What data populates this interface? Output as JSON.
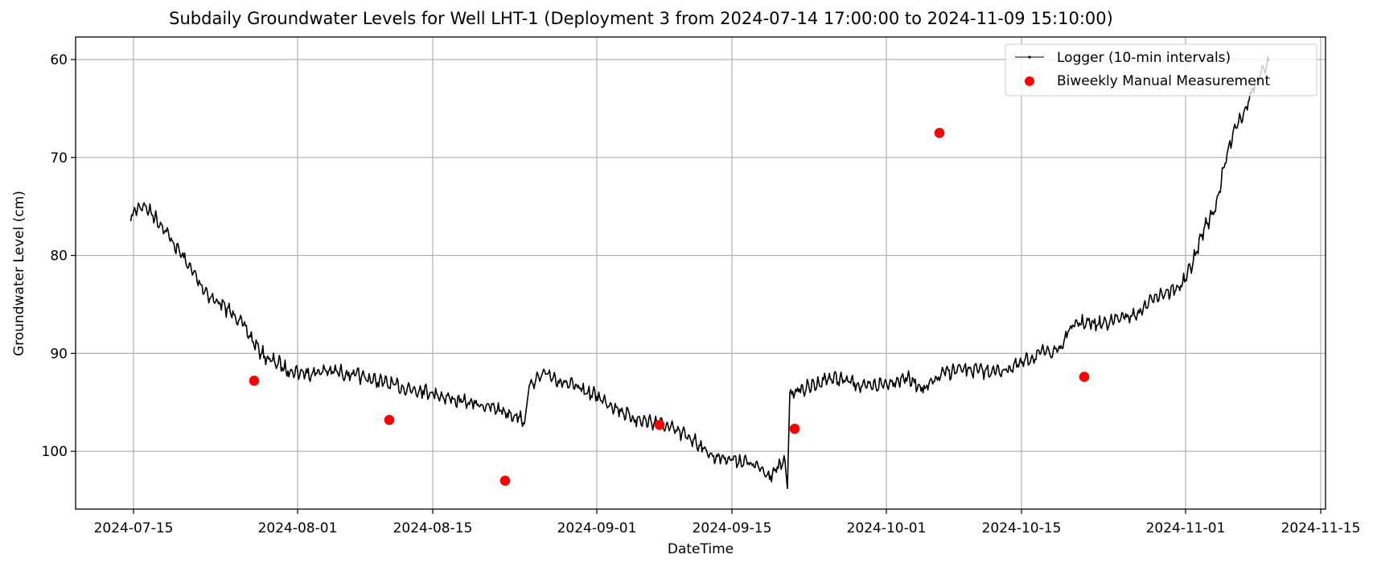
{
  "chart_data": {
    "type": "line",
    "title": "Subdaily Groundwater Levels for Well LHT-1 (Deployment 3 from 2024-07-14 17:00:00 to 2024-11-09 15:10:00)",
    "xlabel": "DateTime",
    "ylabel": "Groundwater Level (cm)",
    "x_axis": {
      "type": "date",
      "range": [
        "2024-07-09",
        "2024-11-15T12:00"
      ],
      "ticks": [
        "2024-07-15",
        "2024-08-01",
        "2024-08-15",
        "2024-09-01",
        "2024-09-15",
        "2024-10-01",
        "2024-10-15",
        "2024-11-01",
        "2024-11-15"
      ]
    },
    "y_axis": {
      "inverted": true,
      "range": [
        105.9,
        57.7
      ],
      "ticks": [
        60,
        70,
        80,
        90,
        100
      ]
    },
    "grid": true,
    "legend": {
      "placement": "top-right",
      "entries": [
        "Logger (10-min intervals)",
        "Biweekly Manual Measurement"
      ]
    },
    "series": [
      {
        "name": "Logger (10-min intervals)",
        "style": "line",
        "color": "#000000",
        "x": [
          "2024-07-14T17:00",
          "2024-07-15",
          "2024-07-16",
          "2024-07-17",
          "2024-07-18",
          "2024-07-19",
          "2024-07-20",
          "2024-07-21",
          "2024-07-22",
          "2024-07-23",
          "2024-07-24",
          "2024-07-25",
          "2024-07-26",
          "2024-07-27",
          "2024-07-28",
          "2024-07-29",
          "2024-07-30",
          "2024-07-31",
          "2024-08-02",
          "2024-08-04",
          "2024-08-06",
          "2024-08-08",
          "2024-08-10",
          "2024-08-12",
          "2024-08-14",
          "2024-08-16",
          "2024-08-18",
          "2024-08-20",
          "2024-08-22",
          "2024-08-24",
          "2024-08-24T12:00",
          "2024-08-25",
          "2024-08-26",
          "2024-08-27",
          "2024-08-28",
          "2024-08-30",
          "2024-09-01",
          "2024-09-03",
          "2024-09-05",
          "2024-09-07",
          "2024-09-09",
          "2024-09-11",
          "2024-09-13",
          "2024-09-15",
          "2024-09-17",
          "2024-09-19",
          "2024-09-20T12:00",
          "2024-09-20T18:00",
          "2024-09-21",
          "2024-09-23",
          "2024-09-25",
          "2024-09-27",
          "2024-09-29",
          "2024-10-01",
          "2024-10-03",
          "2024-10-05",
          "2024-10-07",
          "2024-10-09",
          "2024-10-11",
          "2024-10-13",
          "2024-10-15",
          "2024-10-17",
          "2024-10-19",
          "2024-10-20",
          "2024-10-21",
          "2024-10-23",
          "2024-10-25",
          "2024-10-27",
          "2024-10-29",
          "2024-10-31",
          "2024-11-01",
          "2024-11-02",
          "2024-11-03",
          "2024-11-04",
          "2024-11-05",
          "2024-11-06",
          "2024-11-07",
          "2024-11-08",
          "2024-11-09T15:10"
        ],
        "y": [
          76.5,
          75.5,
          74.8,
          75.9,
          77.0,
          78.5,
          80.0,
          81.5,
          83.0,
          84.3,
          85.0,
          85.7,
          86.5,
          88.2,
          89.7,
          90.6,
          91.0,
          91.8,
          92.0,
          91.8,
          92.0,
          92.5,
          93.0,
          93.5,
          93.8,
          94.3,
          95.0,
          95.2,
          95.8,
          96.5,
          97.2,
          93.3,
          92.5,
          92.0,
          92.8,
          93.5,
          94.4,
          95.5,
          96.8,
          97.0,
          97.8,
          98.8,
          100.5,
          100.8,
          101.2,
          102.5,
          101.0,
          103.8,
          94.0,
          93.5,
          92.5,
          92.8,
          93.5,
          93.0,
          92.5,
          93.6,
          92.0,
          91.6,
          91.8,
          91.8,
          91.0,
          90.0,
          89.5,
          87.5,
          86.9,
          87.0,
          86.5,
          86.0,
          84.0,
          83.5,
          82.5,
          80.0,
          77.0,
          75.5,
          71.0,
          67.0,
          65.5,
          63.0,
          60.2
        ]
      },
      {
        "name": "Biweekly Manual Measurement",
        "style": "scatter",
        "color": "#ff0000",
        "x": [
          "2024-07-27T12:00",
          "2024-08-10T12:00",
          "2024-08-22T12:00",
          "2024-09-07T12:00",
          "2024-09-21T12:00",
          "2024-10-06T12:00",
          "2024-10-21T12:00"
        ],
        "y": [
          92.8,
          96.8,
          103.0,
          97.3,
          97.7,
          67.5,
          92.4
        ]
      }
    ]
  }
}
